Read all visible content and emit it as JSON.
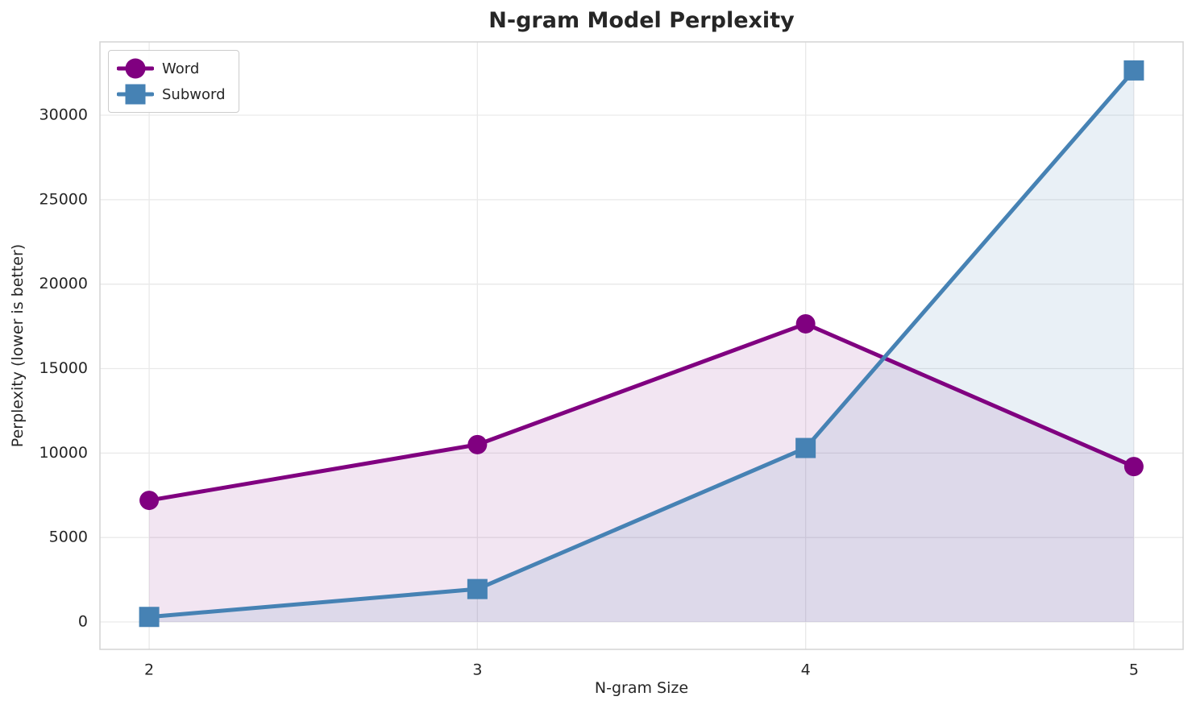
{
  "chart_data": {
    "type": "line",
    "title": "N-gram Model Perplexity",
    "xlabel": "N-gram Size",
    "ylabel": "Perplexity (lower is better)",
    "x": [
      2,
      3,
      4,
      5
    ],
    "series": [
      {
        "name": "Word",
        "values": [
          7200,
          10500,
          17650,
          9200
        ],
        "color": "#800080",
        "marker": "circle",
        "fill_to_zero": true,
        "fill_alpha": 0.1
      },
      {
        "name": "Subword",
        "values": [
          300,
          1950,
          10300,
          32650
        ],
        "color": "#4682B4",
        "marker": "square",
        "fill_to_zero": true,
        "fill_alpha": 0.12
      }
    ],
    "xticks": [
      2,
      3,
      4,
      5
    ],
    "yticks": [
      0,
      5000,
      10000,
      15000,
      20000,
      25000,
      30000
    ],
    "xlim": [
      1.85,
      5.15
    ],
    "ylim": [
      -1620,
      34340
    ],
    "grid": true,
    "legend_position": "upper left",
    "colors": {
      "grid": "#e9e9e9",
      "spine": "#d4d4d4",
      "text": "#262626",
      "background": "#ffffff"
    }
  }
}
